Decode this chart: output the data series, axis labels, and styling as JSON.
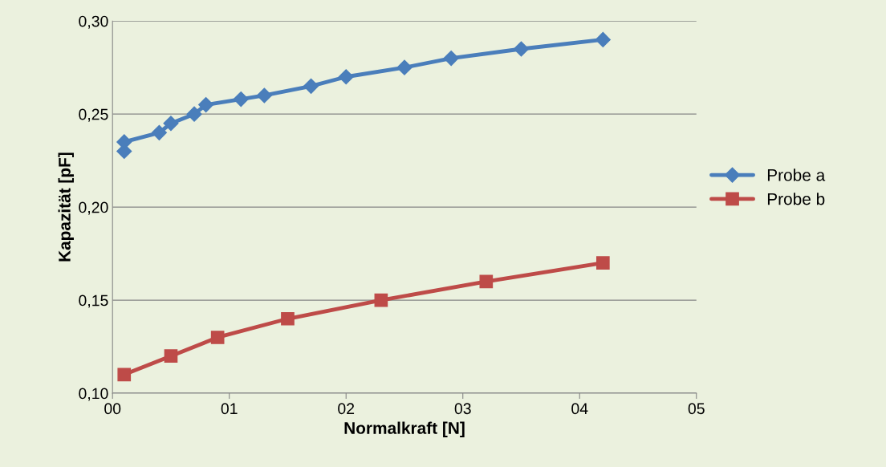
{
  "chart_data": {
    "type": "line",
    "xlabel": "Normalkraft [N]",
    "ylabel": "Kapazität [pF]",
    "xlim": [
      0,
      5
    ],
    "ylim": [
      0.1,
      0.3
    ],
    "xticks": [
      {
        "value": 0,
        "label": "00"
      },
      {
        "value": 1,
        "label": "01"
      },
      {
        "value": 2,
        "label": "02"
      },
      {
        "value": 3,
        "label": "03"
      },
      {
        "value": 4,
        "label": "04"
      },
      {
        "value": 5,
        "label": "05"
      }
    ],
    "yticks": [
      {
        "value": 0.1,
        "label": "0,10"
      },
      {
        "value": 0.15,
        "label": "0,15"
      },
      {
        "value": 0.2,
        "label": "0,20"
      },
      {
        "value": 0.25,
        "label": "0,25"
      },
      {
        "value": 0.3,
        "label": "0,30"
      }
    ],
    "grid": "y",
    "legend": "right",
    "line_style": "solid",
    "series": [
      {
        "name": "Probe a",
        "color": "#4a7ebb",
        "marker": "diamond",
        "x": [
          0.1,
          0.1,
          0.4,
          0.5,
          0.7,
          0.8,
          1.1,
          1.3,
          1.7,
          2.0,
          2.5,
          2.9,
          3.5,
          4.2
        ],
        "values": [
          0.23,
          0.235,
          0.24,
          0.245,
          0.25,
          0.255,
          0.258,
          0.26,
          0.265,
          0.27,
          0.275,
          0.28,
          0.285,
          0.29
        ]
      },
      {
        "name": "Probe b",
        "color": "#be4b48",
        "marker": "square",
        "x": [
          0.1,
          0.5,
          0.9,
          1.5,
          2.3,
          3.2,
          4.2
        ],
        "values": [
          0.11,
          0.12,
          0.13,
          0.14,
          0.15,
          0.16,
          0.17
        ]
      }
    ]
  }
}
